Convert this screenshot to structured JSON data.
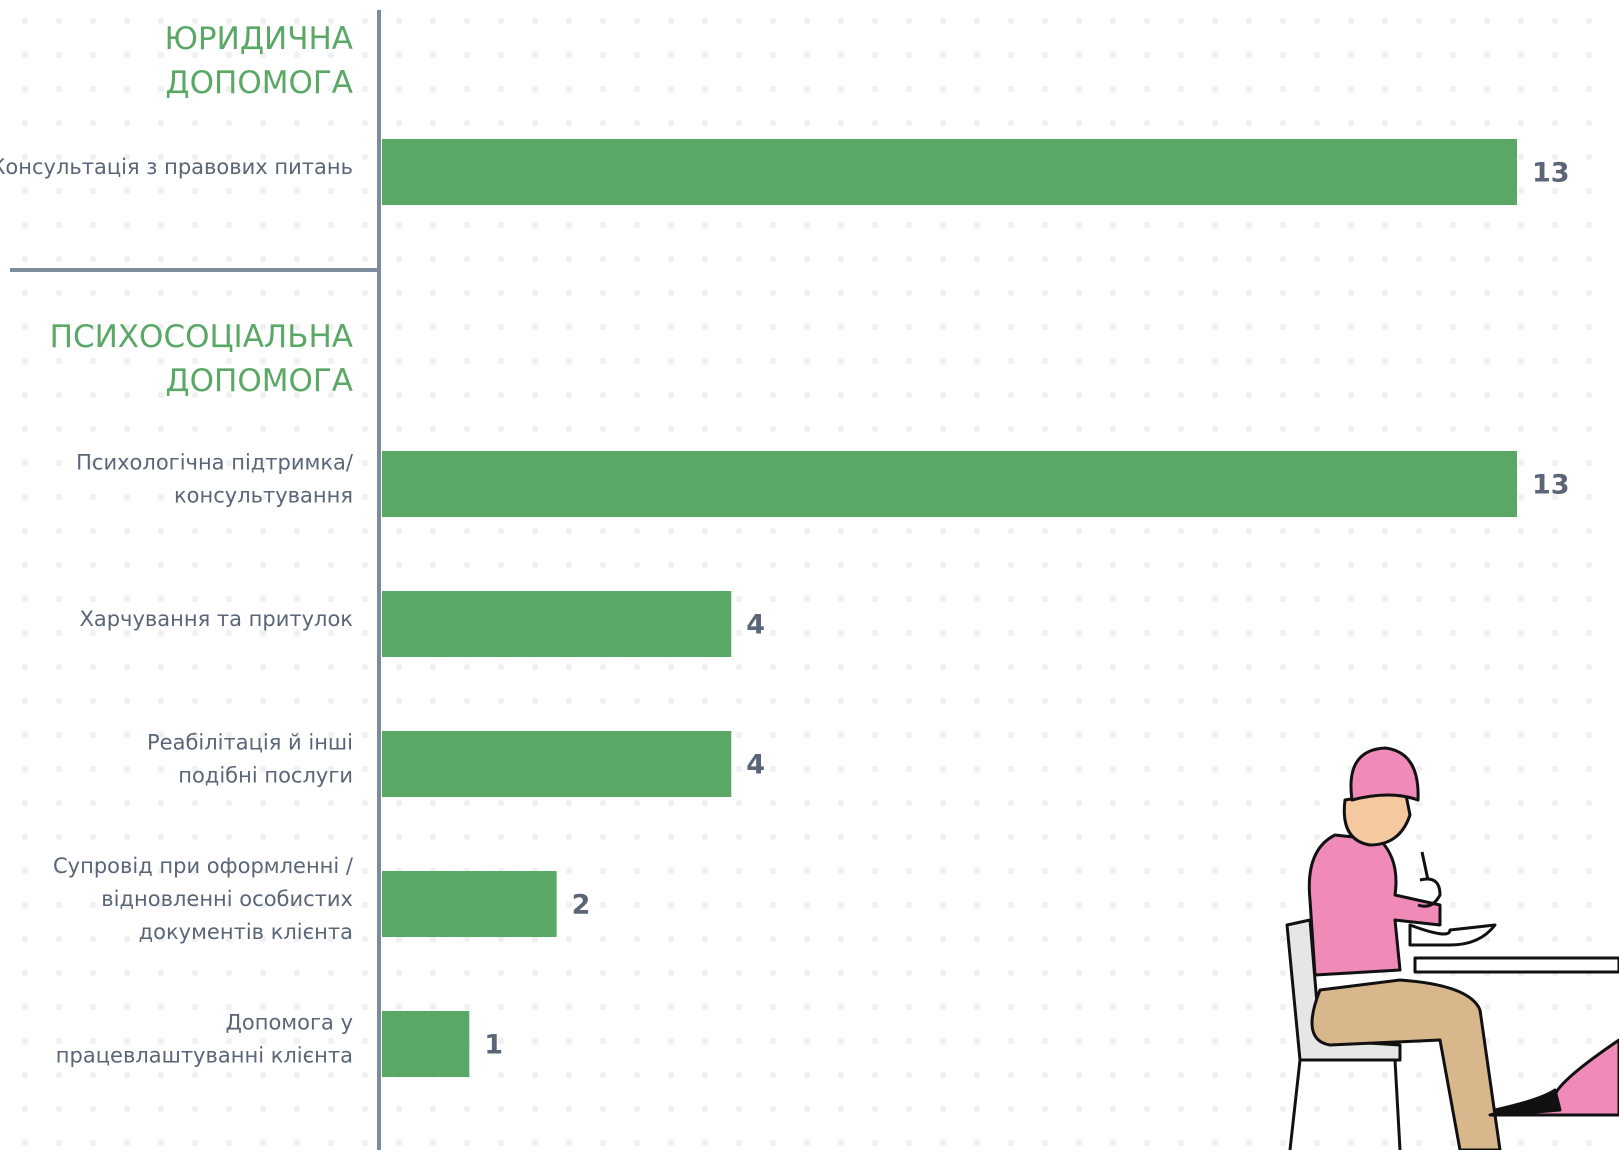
{
  "chart_data": {
    "type": "bar",
    "orientation": "horizontal",
    "color": "#5aa865",
    "xlim": [
      0,
      13
    ],
    "groups": [
      {
        "title": "ЮРИДИЧНА\nДОПОМОГА",
        "categories": [
          "Консультація з правових питань"
        ],
        "values": [
          13
        ]
      },
      {
        "title": "ПСИХОСОЦІАЛЬНА\nДОПОМОГА",
        "categories": [
          "Психологічна підтримка/\nконсультування",
          "Харчування та притулок",
          "Реабілітація й інші\nподібні послуги",
          "Супровід при оформленні /\nвідновленні особистих\nдокументів клієнта",
          "Допомога у\nпрацевлаштуванні клієнта"
        ],
        "values": [
          13,
          4,
          4,
          2,
          1
        ]
      }
    ]
  }
}
